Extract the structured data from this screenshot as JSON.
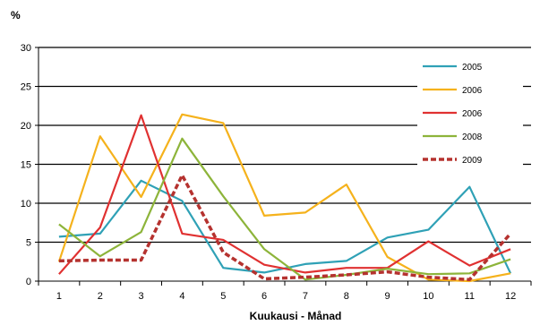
{
  "chart_data": {
    "type": "line",
    "title": "",
    "xlabel": "Kuukausi - Månad",
    "ylabel": "%",
    "x": [
      1,
      2,
      3,
      4,
      5,
      6,
      7,
      8,
      9,
      10,
      11,
      12
    ],
    "ylim": [
      0,
      30
    ],
    "yticks": [
      0,
      5,
      10,
      15,
      20,
      25,
      30
    ],
    "grid": true,
    "legend_position": "right",
    "series": [
      {
        "name": "2005",
        "color": "#2FA1B6",
        "dashed": false,
        "values": [
          5.7,
          6.1,
          12.9,
          10.3,
          1.7,
          1.1,
          2.2,
          2.6,
          5.6,
          6.6,
          12.1,
          1.0
        ]
      },
      {
        "name": "2006",
        "color": "#F5B21C",
        "dashed": false,
        "values": [
          2.5,
          18.6,
          10.8,
          21.4,
          20.3,
          8.4,
          8.8,
          12.4,
          3.1,
          0.2,
          0.0,
          1.0
        ]
      },
      {
        "name": "2006",
        "color": "#E03131",
        "dashed": false,
        "values": [
          0.9,
          6.9,
          21.3,
          6.1,
          5.3,
          2.1,
          1.1,
          1.7,
          1.7,
          5.1,
          2.0,
          4.1
        ]
      },
      {
        "name": "2008",
        "color": "#8DB43A",
        "dashed": false,
        "values": [
          7.3,
          3.2,
          6.3,
          18.3,
          10.9,
          4.1,
          0.2,
          0.8,
          1.6,
          0.9,
          1.0,
          2.8
        ]
      },
      {
        "name": "2009",
        "color": "#B5322F",
        "dashed": true,
        "values": [
          2.6,
          2.7,
          2.7,
          13.6,
          3.7,
          0.3,
          0.5,
          0.8,
          1.2,
          0.5,
          0.2,
          6.1
        ]
      }
    ]
  }
}
